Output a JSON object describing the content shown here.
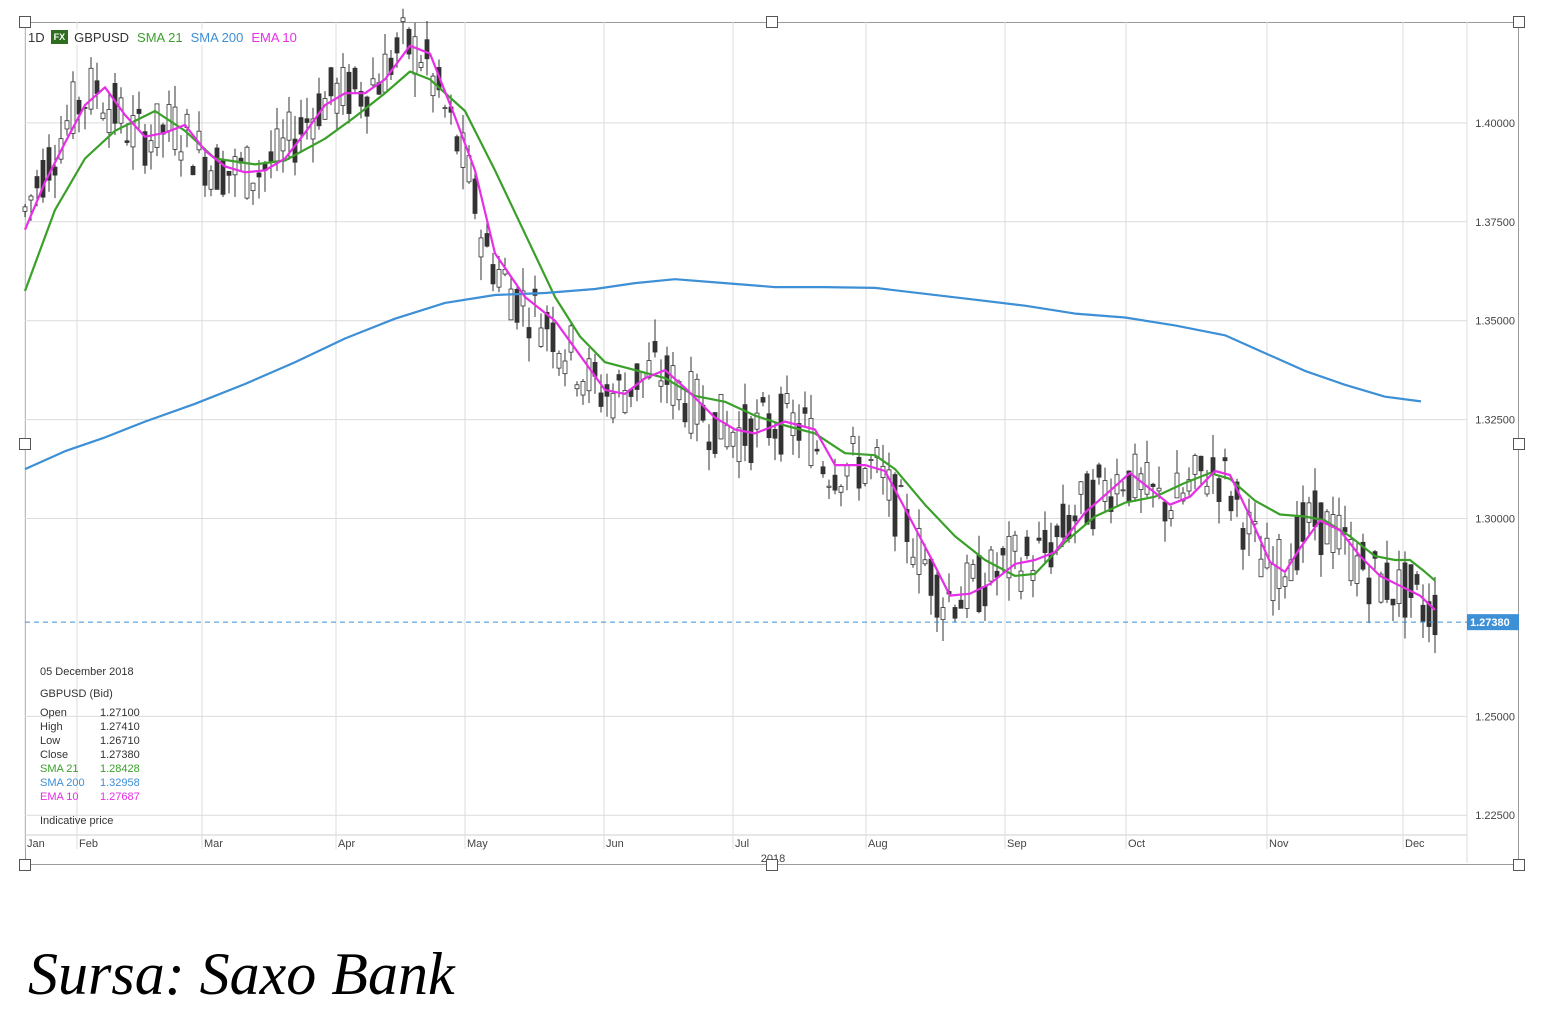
{
  "header": {
    "timeframe": "1D",
    "fx_badge": "FX",
    "symbol": "GBPUSD",
    "legend": [
      {
        "label": "SMA 21",
        "color": "#3aa02a"
      },
      {
        "label": "SMA 200",
        "color": "#3d8fd6"
      },
      {
        "label": "EMA 10",
        "color": "#e62ee6"
      }
    ]
  },
  "info_box": {
    "date": "05 December 2018",
    "instrument": "GBPUSD (Bid)",
    "rows": [
      {
        "label": "Open",
        "value": "1.27100",
        "color": "#333333"
      },
      {
        "label": "High",
        "value": "1.27410",
        "color": "#333333"
      },
      {
        "label": "Low",
        "value": "1.26710",
        "color": "#333333"
      },
      {
        "label": "Close",
        "value": "1.27380",
        "color": "#333333"
      },
      {
        "label": "SMA 21",
        "value": "1.28428",
        "color": "#3aa02a"
      },
      {
        "label": "SMA 200",
        "value": "1.32958",
        "color": "#3d8fd6"
      },
      {
        "label": "EMA 10",
        "value": "1.27687",
        "color": "#e62ee6"
      }
    ],
    "note": "Indicative price"
  },
  "caption": "Sursa: Saxo Bank",
  "chart_data": {
    "type": "line",
    "year_label": "2018",
    "price_tag": "1.27380",
    "last_price": 1.2738,
    "ylim": [
      1.22,
      1.4255
    ],
    "yticks": [
      {
        "value": 1.4,
        "label": "1.40000"
      },
      {
        "value": 1.375,
        "label": "1.37500"
      },
      {
        "value": 1.35,
        "label": "1.35000"
      },
      {
        "value": 1.325,
        "label": "1.32500"
      },
      {
        "value": 1.3,
        "label": "1.30000"
      },
      {
        "value": 1.25,
        "label": "1.25000"
      },
      {
        "value": 1.225,
        "label": "1.22500"
      }
    ],
    "x_range": [
      0,
      1442
    ],
    "months": [
      {
        "label": "Jan",
        "day": 0
      },
      {
        "label": "Feb",
        "day": 1
      },
      {
        "label": "Mar",
        "day": 2
      },
      {
        "label": "Apr",
        "day": 3
      },
      {
        "label": "May",
        "day": 4
      },
      {
        "label": "Jun",
        "day": 5
      },
      {
        "label": "Jul",
        "day": 6
      },
      {
        "label": "Aug",
        "day": 7
      },
      {
        "label": "Sep",
        "day": 8
      },
      {
        "label": "Oct",
        "day": 9
      },
      {
        "label": "Nov",
        "day": 10
      },
      {
        "label": "Dec",
        "day": 11
      }
    ],
    "series": [
      {
        "name": "SMA 21",
        "color": "#3aa02a",
        "values": [
          [
            0,
            1.3575
          ],
          [
            30,
            1.378
          ],
          [
            60,
            1.391
          ],
          [
            90,
            1.398
          ],
          [
            130,
            1.403
          ],
          [
            160,
            1.398
          ],
          [
            190,
            1.391
          ],
          [
            230,
            1.3895
          ],
          [
            260,
            1.3905
          ],
          [
            300,
            1.396
          ],
          [
            330,
            1.4015
          ],
          [
            360,
            1.4075
          ],
          [
            385,
            1.413
          ],
          [
            405,
            1.411
          ],
          [
            440,
            1.403
          ],
          [
            470,
            1.388
          ],
          [
            500,
            1.372
          ],
          [
            530,
            1.356
          ],
          [
            555,
            1.346
          ],
          [
            580,
            1.3395
          ],
          [
            610,
            1.3375
          ],
          [
            640,
            1.3355
          ],
          [
            670,
            1.331
          ],
          [
            700,
            1.3295
          ],
          [
            730,
            1.326
          ],
          [
            760,
            1.3235
          ],
          [
            790,
            1.3215
          ],
          [
            820,
            1.3165
          ],
          [
            850,
            1.316
          ],
          [
            870,
            1.3125
          ],
          [
            900,
            1.3035
          ],
          [
            930,
            1.2955
          ],
          [
            960,
            1.2895
          ],
          [
            990,
            1.2855
          ],
          [
            1010,
            1.286
          ],
          [
            1040,
            1.294
          ],
          [
            1070,
            1.3005
          ],
          [
            1100,
            1.304
          ],
          [
            1130,
            1.3055
          ],
          [
            1160,
            1.309
          ],
          [
            1185,
            1.3115
          ],
          [
            1205,
            1.31
          ],
          [
            1230,
            1.3045
          ],
          [
            1255,
            1.301
          ],
          [
            1280,
            1.3005
          ],
          [
            1300,
            1.2995
          ],
          [
            1325,
            1.2955
          ],
          [
            1350,
            1.2905
          ],
          [
            1370,
            1.2895
          ],
          [
            1385,
            1.2895
          ],
          [
            1400,
            1.2865
          ],
          [
            1410,
            1.2843
          ]
        ]
      },
      {
        "name": "SMA 200",
        "color": "#3d8fd6",
        "values": [
          [
            0,
            1.3125
          ],
          [
            40,
            1.317
          ],
          [
            80,
            1.3205
          ],
          [
            120,
            1.3245
          ],
          [
            170,
            1.329
          ],
          [
            220,
            1.334
          ],
          [
            270,
            1.3395
          ],
          [
            320,
            1.3455
          ],
          [
            370,
            1.3505
          ],
          [
            420,
            1.3545
          ],
          [
            470,
            1.3565
          ],
          [
            520,
            1.357
          ],
          [
            570,
            1.358
          ],
          [
            610,
            1.3595
          ],
          [
            650,
            1.3605
          ],
          [
            700,
            1.3595
          ],
          [
            750,
            1.3585
          ],
          [
            800,
            1.3585
          ],
          [
            850,
            1.3583
          ],
          [
            900,
            1.3568
          ],
          [
            950,
            1.3553
          ],
          [
            1000,
            1.3538
          ],
          [
            1050,
            1.3518
          ],
          [
            1100,
            1.3508
          ],
          [
            1150,
            1.3488
          ],
          [
            1200,
            1.3463
          ],
          [
            1240,
            1.3418
          ],
          [
            1280,
            1.3373
          ],
          [
            1320,
            1.3338
          ],
          [
            1360,
            1.3308
          ],
          [
            1396,
            1.3296
          ]
        ]
      },
      {
        "name": "EMA 10",
        "color": "#e62ee6",
        "values": [
          [
            0,
            1.373
          ],
          [
            20,
            1.385
          ],
          [
            40,
            1.395
          ],
          [
            60,
            1.4045
          ],
          [
            80,
            1.409
          ],
          [
            100,
            1.402
          ],
          [
            120,
            1.3965
          ],
          [
            140,
            1.3975
          ],
          [
            160,
            1.3995
          ],
          [
            180,
            1.393
          ],
          [
            200,
            1.389
          ],
          [
            220,
            1.3875
          ],
          [
            240,
            1.388
          ],
          [
            260,
            1.391
          ],
          [
            280,
            1.3975
          ],
          [
            300,
            1.4045
          ],
          [
            320,
            1.4075
          ],
          [
            340,
            1.4075
          ],
          [
            360,
            1.411
          ],
          [
            385,
            1.4195
          ],
          [
            405,
            1.4175
          ],
          [
            430,
            1.4015
          ],
          [
            450,
            1.388
          ],
          [
            470,
            1.367
          ],
          [
            500,
            1.356
          ],
          [
            530,
            1.35
          ],
          [
            560,
            1.3395
          ],
          [
            580,
            1.3325
          ],
          [
            600,
            1.3315
          ],
          [
            620,
            1.3355
          ],
          [
            640,
            1.3375
          ],
          [
            660,
            1.333
          ],
          [
            690,
            1.3255
          ],
          [
            710,
            1.3225
          ],
          [
            730,
            1.3215
          ],
          [
            760,
            1.3245
          ],
          [
            790,
            1.3225
          ],
          [
            810,
            1.3135
          ],
          [
            840,
            1.3135
          ],
          [
            860,
            1.312
          ],
          [
            880,
            1.3025
          ],
          [
            905,
            1.2905
          ],
          [
            925,
            1.2805
          ],
          [
            945,
            1.281
          ],
          [
            965,
            1.2835
          ],
          [
            990,
            1.2885
          ],
          [
            1010,
            1.2895
          ],
          [
            1030,
            1.2915
          ],
          [
            1060,
            1.3015
          ],
          [
            1085,
            1.307
          ],
          [
            1105,
            1.3115
          ],
          [
            1125,
            1.3075
          ],
          [
            1145,
            1.3035
          ],
          [
            1165,
            1.3055
          ],
          [
            1190,
            1.312
          ],
          [
            1205,
            1.311
          ],
          [
            1225,
            1.3005
          ],
          [
            1245,
            1.289
          ],
          [
            1260,
            1.2865
          ],
          [
            1275,
            1.2925
          ],
          [
            1295,
            1.2995
          ],
          [
            1315,
            1.297
          ],
          [
            1335,
            1.2905
          ],
          [
            1355,
            1.2855
          ],
          [
            1375,
            1.283
          ],
          [
            1395,
            1.2805
          ],
          [
            1410,
            1.2769
          ]
        ]
      }
    ]
  }
}
